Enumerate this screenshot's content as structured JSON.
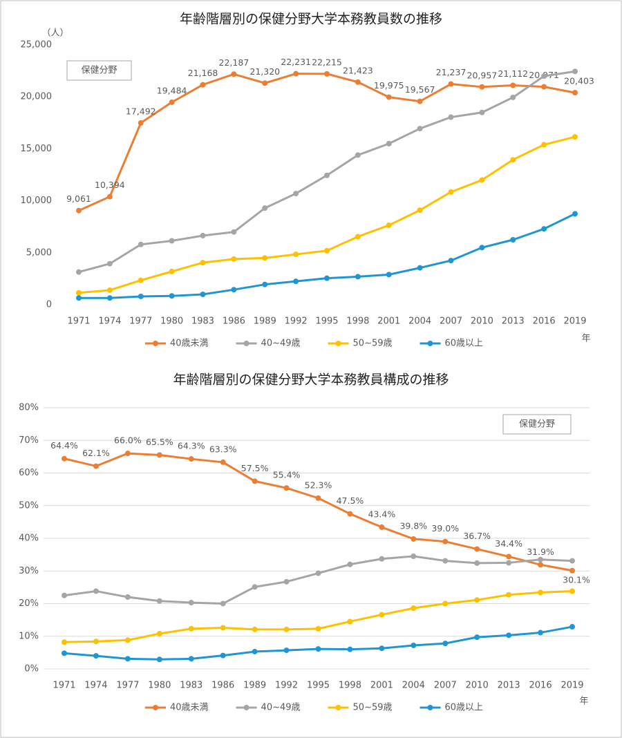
{
  "chart_data": [
    {
      "type": "line",
      "title": "年齢階層別の保健分野大学本務教員数の推移",
      "ylabel": "（人）",
      "xlabel": "年",
      "annotation": "保健分野",
      "categories": [
        "1971",
        "1974",
        "1977",
        "1980",
        "1983",
        "1986",
        "1989",
        "1992",
        "1995",
        "1998",
        "2001",
        "2004",
        "2007",
        "2010",
        "2013",
        "2016",
        "2019"
      ],
      "ylim": [
        0,
        25000
      ],
      "yticks": [
        0,
        {
          "value": 5000,
          "label": "5,000"
        },
        {
          "value": 10000,
          "label": "10,000"
        },
        {
          "value": 15000,
          "label": "15,000"
        },
        {
          "value": 20000,
          "label": "20,000"
        },
        {
          "value": 25000,
          "label": "25,000"
        }
      ],
      "grid": false,
      "legend": "bottom",
      "series": [
        {
          "name": "40歳未満",
          "color": "#ed7d31",
          "values": [
            9061,
            10394,
            17492,
            19484,
            21168,
            22187,
            21320,
            22231,
            22215,
            21423,
            19975,
            19567,
            21237,
            20957,
            21112,
            20971,
            20403
          ],
          "value_labels": [
            "9,061",
            "10,394",
            "17,492",
            "19,484",
            "21,168",
            "22,187",
            "21,320",
            "22,231",
            "22,215",
            "21,423",
            "19,975",
            "19,567",
            "21,237",
            "20,957",
            "21,112",
            "20,971",
            "20,403"
          ]
        },
        {
          "name": "40~49歳",
          "color": "#a5a5a5",
          "values": [
            3150,
            3950,
            5800,
            6150,
            6650,
            7000,
            9300,
            10700,
            12450,
            14400,
            15500,
            16950,
            18050,
            18500,
            19950,
            22000,
            22450
          ]
        },
        {
          "name": "50~59歳",
          "color": "#ffc000",
          "values": [
            1150,
            1400,
            2350,
            3200,
            4050,
            4400,
            4500,
            4850,
            5200,
            6550,
            7650,
            9100,
            10850,
            12000,
            13950,
            15400,
            16150
          ]
        },
        {
          "name": "60歳以上",
          "color": "#1f96d3",
          "values": [
            650,
            650,
            800,
            850,
            1000,
            1450,
            1950,
            2250,
            2550,
            2700,
            2900,
            3550,
            4250,
            5500,
            6250,
            7300,
            8750
          ]
        }
      ]
    },
    {
      "type": "line",
      "title": "年齢階層別の保健分野大学本務教員構成の推移",
      "xlabel": "年",
      "annotation": "保健分野",
      "categories": [
        "1971",
        "1974",
        "1977",
        "1980",
        "1983",
        "1986",
        "1989",
        "1992",
        "1995",
        "1998",
        "2001",
        "2004",
        "2007",
        "2010",
        "2013",
        "2016",
        "2019"
      ],
      "ylim": [
        0,
        80
      ],
      "yticks": [
        {
          "value": 0,
          "label": "0%"
        },
        {
          "value": 10,
          "label": "10%"
        },
        {
          "value": 20,
          "label": "20%"
        },
        {
          "value": 30,
          "label": "30%"
        },
        {
          "value": 40,
          "label": "40%"
        },
        {
          "value": 50,
          "label": "50%"
        },
        {
          "value": 60,
          "label": "60%"
        },
        {
          "value": 70,
          "label": "70%"
        },
        {
          "value": 80,
          "label": "80%"
        }
      ],
      "grid": true,
      "legend": "bottom",
      "series": [
        {
          "name": "40歳未満",
          "color": "#ed7d31",
          "values": [
            64.4,
            62.1,
            66.0,
            65.5,
            64.3,
            63.3,
            57.5,
            55.4,
            52.3,
            47.5,
            43.4,
            39.8,
            39.0,
            36.7,
            34.4,
            31.9,
            30.1
          ],
          "value_labels": [
            "64.4%",
            "62.1%",
            "66.0%",
            "65.5%",
            "64.3%",
            "63.3%",
            "57.5%",
            "55.4%",
            "52.3%",
            "47.5%",
            "43.4%",
            "39.8%",
            "39.0%",
            "36.7%",
            "34.4%",
            "31.9%",
            "30.1%"
          ]
        },
        {
          "name": "40~49歳",
          "color": "#a5a5a5",
          "values": [
            22.5,
            23.8,
            22.0,
            20.8,
            20.3,
            20.0,
            25.1,
            26.7,
            29.3,
            32.0,
            33.7,
            34.5,
            33.1,
            32.4,
            32.5,
            33.5,
            33.1
          ]
        },
        {
          "name": "50~59歳",
          "color": "#ffc000",
          "values": [
            8.2,
            8.4,
            8.8,
            10.8,
            12.3,
            12.6,
            12.1,
            12.1,
            12.3,
            14.5,
            16.6,
            18.6,
            20.0,
            21.1,
            22.7,
            23.4,
            23.8
          ]
        },
        {
          "name": "60歳以上",
          "color": "#1f96d3",
          "values": [
            4.8,
            4.0,
            3.1,
            2.9,
            3.1,
            4.1,
            5.3,
            5.7,
            6.1,
            6.0,
            6.3,
            7.2,
            7.8,
            9.7,
            10.3,
            11.1,
            12.9
          ]
        }
      ]
    }
  ]
}
